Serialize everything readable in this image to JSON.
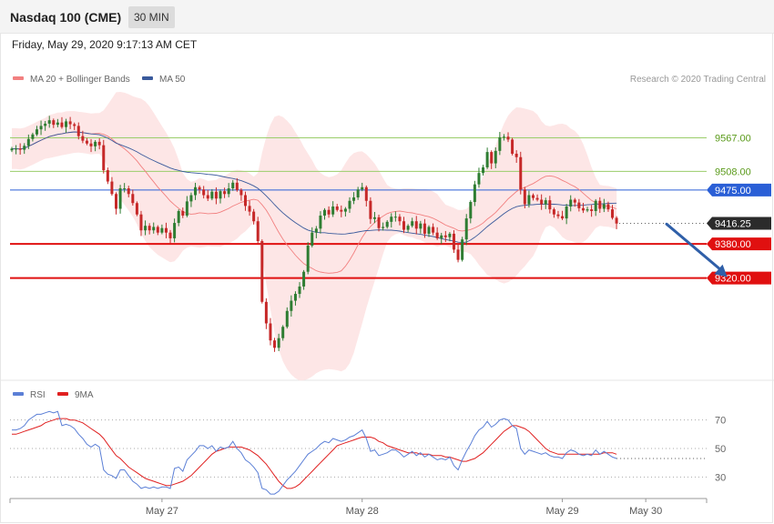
{
  "header": {
    "instrument": "Nasdaq 100 (CME)",
    "timeframe": "30 MIN",
    "datetime": "Friday, May 29, 2020 9:17:13 AM CET"
  },
  "legend": {
    "ma20_label": "MA 20 + Bollinger Bands",
    "ma50_label": "MA 50",
    "rsi_label": "RSI",
    "rsi_ma_label": "9MA",
    "credit": "Research © 2020 Trading Central"
  },
  "colors": {
    "ma20": "#f28080",
    "ma50": "#3a5a9c",
    "band_fill": "#fde2e2",
    "bull": "#2e7d32",
    "bear": "#c62828",
    "green_level": "#9acd6a",
    "blue_level": "#2a5fd6",
    "red_level": "#e01010",
    "current_box": "#2b2b2b",
    "arrow": "#2f5fa8",
    "rsi": "#5b7fd6",
    "rsi_ma": "#e02020"
  },
  "chart_data": [
    {
      "type": "candlestick",
      "y_range": [
        9143,
        9656
      ],
      "x_labels": [
        {
          "index": 36,
          "label": "May 27"
        },
        {
          "index": 84,
          "label": "May 28"
        },
        {
          "index": 132,
          "label": "May 29"
        },
        {
          "index": 152,
          "label": "May 30"
        }
      ],
      "levels": [
        {
          "value": 9567.0,
          "label": "9567.00",
          "kind": "resistance-green"
        },
        {
          "value": 9508.0,
          "label": "9508.00",
          "kind": "resistance-green"
        },
        {
          "value": 9475.0,
          "label": "9475.00",
          "kind": "pivot-blue"
        },
        {
          "value": 9380.0,
          "label": "9380.00",
          "kind": "support-red"
        },
        {
          "value": 9320.0,
          "label": "9320.00",
          "kind": "support-red"
        }
      ],
      "current_price": {
        "value": 9416.25,
        "label": "9416.25"
      },
      "arrow": {
        "from_index": 157,
        "from_value": 9415,
        "to_index": 172,
        "to_value": 9320
      },
      "closes": [
        9548,
        9548,
        9546,
        9553,
        9565,
        9573,
        9582,
        9588,
        9592,
        9598,
        9590,
        9594,
        9586,
        9596,
        9591,
        9588,
        9570,
        9562,
        9557,
        9552,
        9560,
        9554,
        9510,
        9490,
        9468,
        9442,
        9478,
        9478,
        9468,
        9452,
        9432,
        9404,
        9412,
        9404,
        9410,
        9400,
        9408,
        9400,
        9390,
        9417,
        9438,
        9430,
        9455,
        9466,
        9480,
        9476,
        9466,
        9460,
        9472,
        9460,
        9473,
        9468,
        9478,
        9488,
        9475,
        9466,
        9447,
        9437,
        9420,
        9385,
        9278,
        9240,
        9210,
        9197,
        9214,
        9234,
        9262,
        9280,
        9292,
        9305,
        9331,
        9377,
        9400,
        9407,
        9430,
        9440,
        9432,
        9446,
        9440,
        9437,
        9442,
        9456,
        9462,
        9476,
        9480,
        9456,
        9424,
        9427,
        9408,
        9410,
        9419,
        9428,
        9428,
        9420,
        9405,
        9412,
        9420,
        9407,
        9416,
        9398,
        9410,
        9400,
        9390,
        9395,
        9392,
        9398,
        9370,
        9352,
        9388,
        9425,
        9454,
        9485,
        9505,
        9515,
        9542,
        9522,
        9544,
        9568,
        9569,
        9564,
        9539,
        9533,
        9476,
        9450,
        9466,
        9461,
        9458,
        9450,
        9457,
        9441,
        9432,
        9429,
        9425,
        9446,
        9458,
        9453,
        9443,
        9439,
        9441,
        9438,
        9456,
        9442,
        9450,
        9441,
        9426,
        9416
      ],
      "rsi": {
        "y_range": [
          20,
          80
        ],
        "ticks": [
          {
            "value": 70,
            "label": "70"
          },
          {
            "value": 50,
            "label": "50"
          },
          {
            "value": 30,
            "label": "30"
          }
        ],
        "rsi_values": [
          63,
          63,
          64,
          66,
          70,
          72,
          74,
          74,
          75,
          76,
          75,
          76,
          66,
          67,
          66,
          64,
          60,
          57,
          53,
          51,
          53,
          51,
          35,
          32,
          31,
          29,
          35,
          35,
          31,
          27,
          25,
          22,
          23,
          22,
          23,
          22,
          23,
          23,
          22,
          36,
          37,
          34,
          42,
          45,
          48,
          52,
          52,
          50,
          52,
          48,
          51,
          50,
          51,
          55,
          50,
          47,
          42,
          40,
          37,
          33,
          22,
          21,
          18,
          18,
          20,
          24,
          28,
          31,
          34,
          38,
          42,
          46,
          48,
          50,
          53,
          55,
          54,
          57,
          56,
          55,
          56,
          58,
          59,
          61,
          63,
          57,
          48,
          49,
          45,
          46,
          47,
          49,
          49,
          47,
          44,
          46,
          48,
          45,
          47,
          44,
          46,
          44,
          42,
          43,
          42,
          44,
          38,
          35,
          42,
          48,
          53,
          59,
          63,
          65,
          69,
          65,
          67,
          70,
          71,
          70,
          66,
          64,
          50,
          46,
          49,
          48,
          47,
          46,
          47,
          45,
          44,
          44,
          43,
          47,
          49,
          48,
          46,
          45,
          46,
          45,
          49,
          46,
          48,
          46,
          44,
          43
        ],
        "rsi_ma_values": [
          60,
          60,
          61,
          62,
          63,
          64,
          65,
          66,
          68,
          69,
          70,
          71,
          71,
          71,
          70,
          70,
          69,
          68,
          66,
          64,
          62,
          60,
          57,
          53,
          49,
          45,
          43,
          40,
          37,
          35,
          33,
          31,
          29,
          28,
          27,
          26,
          25,
          24,
          24,
          25,
          26,
          27,
          29,
          31,
          34,
          37,
          40,
          43,
          46,
          48,
          49,
          50,
          51,
          51,
          51,
          51,
          50,
          49,
          47,
          45,
          42,
          39,
          35,
          31,
          27,
          24,
          22,
          22,
          23,
          25,
          28,
          31,
          34,
          37,
          40,
          43,
          46,
          49,
          52,
          53,
          54,
          55,
          56,
          57,
          58,
          58,
          58,
          57,
          55,
          54,
          52,
          51,
          50,
          49,
          48,
          47,
          47,
          47,
          46,
          46,
          46,
          45,
          45,
          45,
          44,
          44,
          43,
          42,
          41,
          41,
          42,
          43,
          45,
          47,
          50,
          53,
          56,
          59,
          62,
          64,
          66,
          66,
          65,
          64,
          62,
          59,
          56,
          53,
          50,
          48,
          47,
          46,
          46,
          46,
          46,
          46,
          46,
          46,
          46,
          46,
          46,
          46,
          47,
          47,
          47,
          46
        ]
      }
    }
  ]
}
